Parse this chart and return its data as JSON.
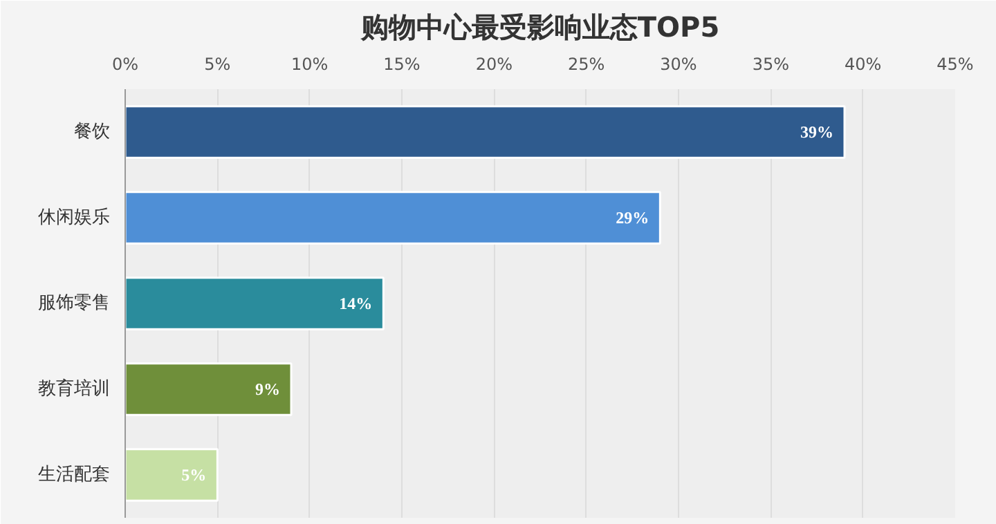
{
  "chart_data": {
    "type": "bar",
    "orientation": "horizontal",
    "title": "购物中心最受影响业态TOP5",
    "categories": [
      "餐饮",
      "休闲娱乐",
      "服饰零售",
      "教育培训",
      "生活配套"
    ],
    "values": [
      39,
      29,
      14,
      9,
      5
    ],
    "colors": [
      "#2f5b8e",
      "#4f8fd6",
      "#2a8c9c",
      "#6f8f3a",
      "#c6e0a4"
    ],
    "value_labels": [
      "39%",
      "29%",
      "14%",
      "9%",
      "5%"
    ],
    "xlim": [
      0,
      45
    ],
    "xticks": [
      {
        "value": 0,
        "label": "0%"
      },
      {
        "value": 5,
        "label": "5%"
      },
      {
        "value": 10,
        "label": "10%"
      },
      {
        "value": 15,
        "label": "15%"
      },
      {
        "value": 20,
        "label": "20%"
      },
      {
        "value": 25,
        "label": "25%"
      },
      {
        "value": 30,
        "label": "30%"
      },
      {
        "value": 35,
        "label": "35%"
      },
      {
        "value": 40,
        "label": "40%"
      },
      {
        "value": 45,
        "label": "45%"
      }
    ],
    "grid": "x"
  }
}
